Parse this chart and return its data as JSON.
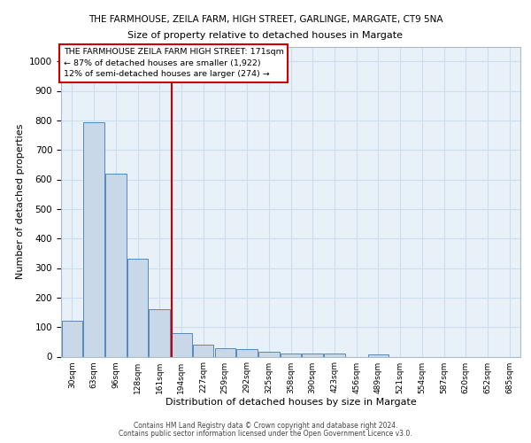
{
  "title_line1": "THE FARMHOUSE, ZEILA FARM, HIGH STREET, GARLINGE, MARGATE, CT9 5NA",
  "title_line2": "Size of property relative to detached houses in Margate",
  "xlabel": "Distribution of detached houses by size in Margate",
  "ylabel": "Number of detached properties",
  "categories": [
    "30sqm",
    "63sqm",
    "96sqm",
    "128sqm",
    "161sqm",
    "194sqm",
    "227sqm",
    "259sqm",
    "292sqm",
    "325sqm",
    "358sqm",
    "390sqm",
    "423sqm",
    "456sqm",
    "489sqm",
    "521sqm",
    "554sqm",
    "587sqm",
    "620sqm",
    "652sqm",
    "685sqm"
  ],
  "values": [
    122,
    795,
    620,
    333,
    160,
    80,
    40,
    28,
    25,
    18,
    12,
    10,
    10,
    0,
    8,
    0,
    0,
    0,
    0,
    0,
    0
  ],
  "bar_color": "#c8d8e8",
  "bar_edge_color": "#5588bb",
  "red_line_x": 4.55,
  "annotation_line1": "THE FARMHOUSE ZEILA FARM HIGH STREET: 171sqm",
  "annotation_line2": "← 87% of detached houses are smaller (1,922)",
  "annotation_line3": "12% of semi-detached houses are larger (274) →",
  "annotation_box_color": "#ffffff",
  "annotation_box_edge": "#cc0000",
  "vline_color": "#cc0000",
  "ylim": [
    0,
    1050
  ],
  "yticks": [
    0,
    100,
    200,
    300,
    400,
    500,
    600,
    700,
    800,
    900,
    1000
  ],
  "grid_color": "#ccddee",
  "bg_color": "#e8f0f8",
  "footer_line1": "Contains HM Land Registry data © Crown copyright and database right 2024.",
  "footer_line2": "Contains public sector information licensed under the Open Government Licence v3.0."
}
